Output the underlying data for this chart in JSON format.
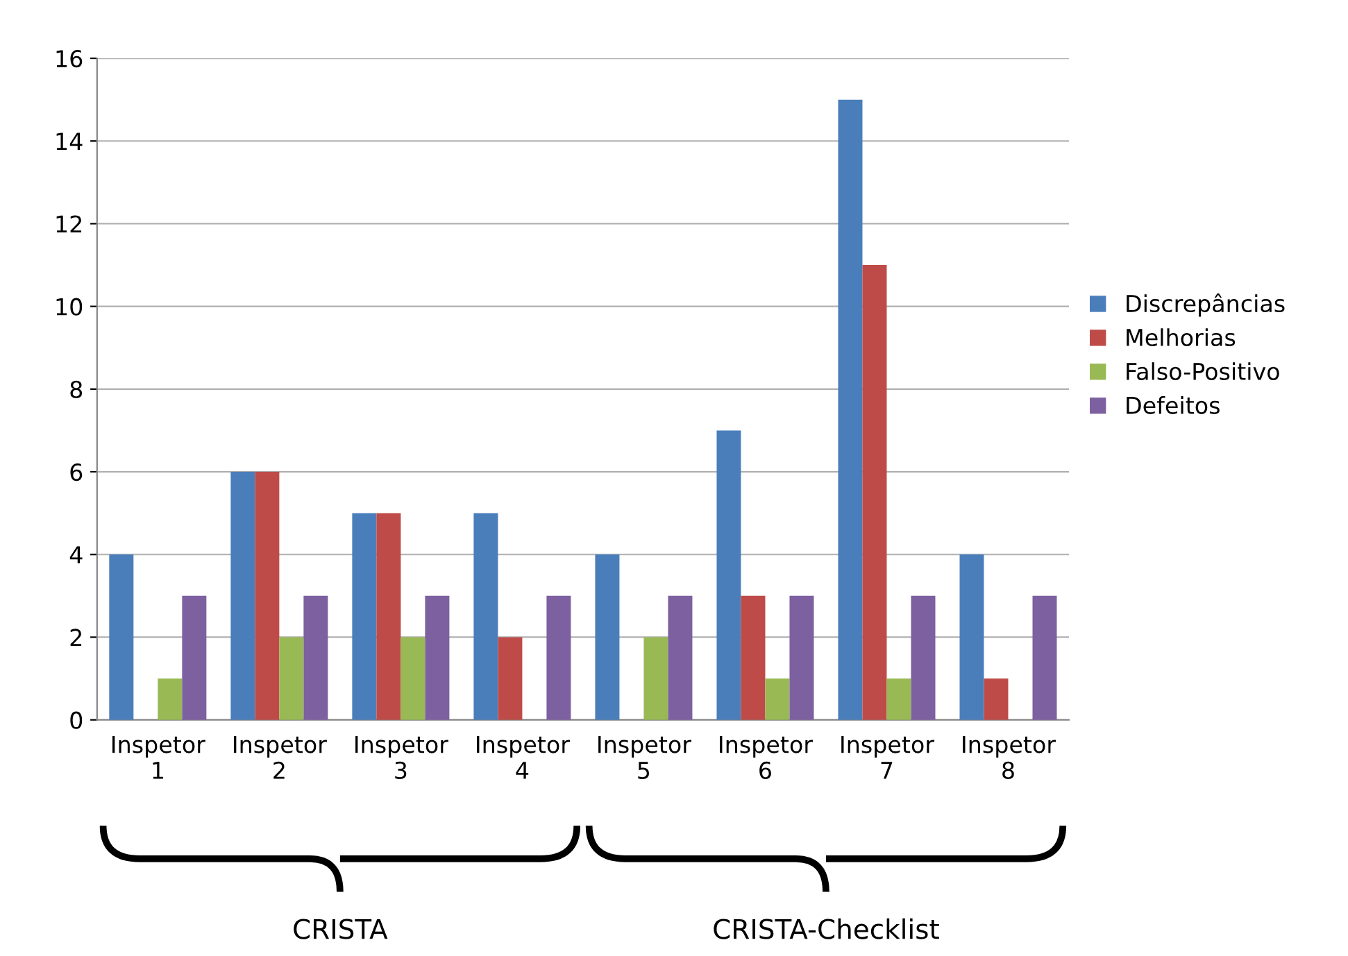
{
  "chart_data": {
    "type": "bar",
    "categories": [
      "Inspetor\n1",
      "Inspetor\n2",
      "Inspetor\n3",
      "Inspetor\n4",
      "Inspetor\n5",
      "Inspetor\n6",
      "Inspetor\n7",
      "Inspetor\n8"
    ],
    "series": [
      {
        "name": "Discrepâncias",
        "color": "#4a7ebb",
        "values": [
          4,
          6,
          5,
          5,
          4,
          7,
          15,
          4
        ]
      },
      {
        "name": "Melhorias",
        "color": "#be4b48",
        "values": [
          0,
          6,
          5,
          2,
          0,
          3,
          11,
          1
        ]
      },
      {
        "name": "Falso-Positivo",
        "color": "#98b954",
        "values": [
          1,
          2,
          2,
          0,
          2,
          1,
          1,
          0
        ]
      },
      {
        "name": "Defeitos",
        "color": "#7d60a0",
        "values": [
          3,
          3,
          3,
          3,
          3,
          3,
          3,
          3
        ]
      }
    ],
    "ylim": [
      0,
      16
    ],
    "yticks": [
      0,
      2,
      4,
      6,
      8,
      10,
      12,
      14,
      16
    ],
    "grid": "y",
    "legend": "right",
    "annotations": [
      "CRISTA",
      "CRISTA-Checklist"
    ]
  }
}
